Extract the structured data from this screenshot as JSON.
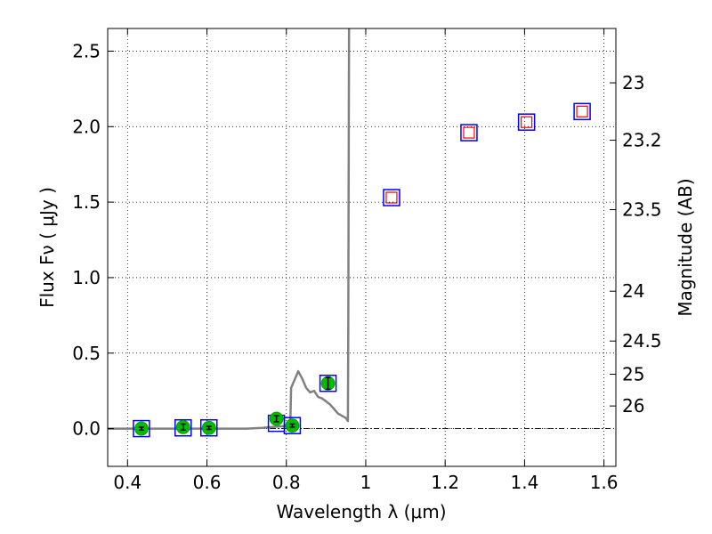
{
  "chart_data": {
    "type": "scatter",
    "xlabel": "Wavelength  λ (μm)",
    "ylabel": "Flux  Fν  ( μJy )",
    "y2label": "Magnitude (AB)",
    "xlim": [
      0.35,
      1.63
    ],
    "ylim": [
      -0.25,
      2.65
    ],
    "grid": true,
    "x_ticks": [
      0.4,
      0.6,
      0.8,
      1.0,
      1.2,
      1.4,
      1.6
    ],
    "x_tick_labels": [
      "0.4",
      "0.6",
      "0.8",
      "1",
      "1.2",
      "1.4",
      "1.6"
    ],
    "y_ticks": [
      0.0,
      0.5,
      1.0,
      1.5,
      2.0,
      2.5
    ],
    "y_tick_labels": [
      "0.0",
      "0.5",
      "1.0",
      "1.5",
      "2.0",
      "2.5"
    ],
    "y2_ticks": [
      {
        "flux": 2.29,
        "label": "23"
      },
      {
        "flux": 1.91,
        "label": "23.2"
      },
      {
        "flux": 1.45,
        "label": "23.5"
      },
      {
        "flux": 0.91,
        "label": "24"
      },
      {
        "flux": 0.58,
        "label": "24.5"
      },
      {
        "flux": 0.36,
        "label": "25"
      },
      {
        "flux": 0.15,
        "label": "26"
      }
    ],
    "colors": {
      "model": "#808080",
      "obs_marker": "#00bb00",
      "model_box": "#0000ff",
      "upper_box": "#ff0000",
      "zero_line": "#000000"
    },
    "series": [
      {
        "name": "model_spectrum",
        "kind": "line",
        "x": [
          0.35,
          0.7,
          0.74,
          0.76,
          0.79,
          0.805,
          0.81,
          0.812,
          0.83,
          0.84,
          0.85,
          0.86,
          0.87,
          0.88,
          0.89,
          0.9,
          0.91,
          0.92,
          0.93,
          0.95,
          0.955,
          0.956,
          0.958
        ],
        "y": [
          0.0,
          0.0,
          0.005,
          0.01,
          0.015,
          0.02,
          0.04,
          0.27,
          0.38,
          0.33,
          0.27,
          0.24,
          0.25,
          0.21,
          0.2,
          0.18,
          0.16,
          0.13,
          0.1,
          0.07,
          0.05,
          0.6,
          2.7
        ]
      },
      {
        "name": "model_photometry",
        "kind": "box",
        "x": [
          0.435,
          0.54,
          0.605,
          0.775,
          0.815,
          0.905,
          1.065,
          1.26,
          1.405,
          1.545
        ],
        "y": [
          0.0,
          0.005,
          0.005,
          0.035,
          0.02,
          0.3,
          1.53,
          1.96,
          2.03,
          2.1
        ]
      },
      {
        "name": "observed",
        "kind": "errorbar",
        "x": [
          0.435,
          0.54,
          0.605,
          0.775,
          0.815,
          0.905
        ],
        "y": [
          0.0,
          0.01,
          0.005,
          0.065,
          0.02,
          0.3
        ],
        "yerr": [
          0.01,
          0.02,
          0.01,
          0.02,
          0.01,
          0.04
        ]
      },
      {
        "name": "upper_limits",
        "kind": "open-square",
        "x": [
          1.065,
          1.26,
          1.405,
          1.545
        ],
        "y": [
          1.53,
          1.96,
          2.03,
          2.1
        ]
      }
    ]
  }
}
